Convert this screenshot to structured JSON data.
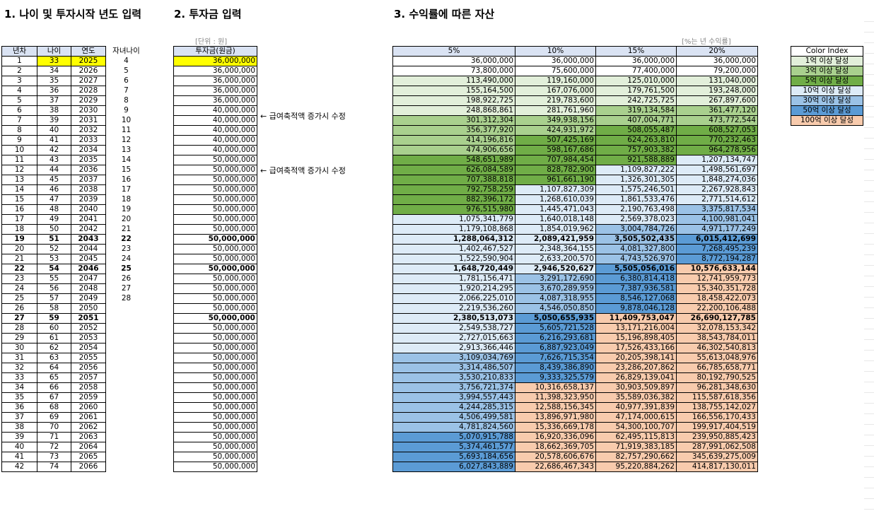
{
  "sections": {
    "s1": "1. 나이 및 투자시작 년도 입력",
    "s2": "2. 투자금 입력",
    "s3": "3. 수익률에 따른 자산"
  },
  "units": {
    "won": "[단위 : 원]",
    "rate": "[%는 년 수익률]"
  },
  "left_headers": [
    "년차",
    "나이",
    "연도",
    "자녀나이"
  ],
  "invest_header": "투자금(원금)",
  "rates": [
    "5%",
    "10%",
    "15%",
    "20%"
  ],
  "notes": [
    "← 급여축적액 증가시 수정",
    "← 급여축적액 증가시 수정"
  ],
  "color_index": {
    "title": "Color Index",
    "items": [
      {
        "label": "1억 이상 달성",
        "color": "#e2efda"
      },
      {
        "label": "3억 이상 달성",
        "color": "#a9d08e"
      },
      {
        "label": "5억 이상 달성",
        "color": "#70ad47"
      },
      {
        "label": "10억 이상 달성",
        "color": "#ddebf7"
      },
      {
        "label": "30억 이상 달성",
        "color": "#9bc2e6"
      },
      {
        "label": "50억 이상 달성",
        "color": "#5b9bd5"
      },
      {
        "label": "100억 이상 달성",
        "color": "#f8cbad"
      }
    ]
  },
  "rows": [
    {
      "y": "1",
      "age": "33",
      "year": "2025",
      "child": "4",
      "inv": "36,000,000",
      "v": [
        "36,000,000",
        "36,000,000",
        "36,000,000",
        "36,000,000"
      ]
    },
    {
      "y": "2",
      "age": "34",
      "year": "2026",
      "child": "5",
      "inv": "36,000,000",
      "v": [
        "73,800,000",
        "75,600,000",
        "77,400,000",
        "79,200,000"
      ]
    },
    {
      "y": "3",
      "age": "35",
      "year": "2027",
      "child": "6",
      "inv": "36,000,000",
      "v": [
        "113,490,000",
        "119,160,000",
        "125,010,000",
        "131,040,000"
      ]
    },
    {
      "y": "4",
      "age": "36",
      "year": "2028",
      "child": "7",
      "inv": "36,000,000",
      "v": [
        "155,164,500",
        "167,076,000",
        "179,761,500",
        "193,248,000"
      ]
    },
    {
      "y": "5",
      "age": "37",
      "year": "2029",
      "child": "8",
      "inv": "36,000,000",
      "v": [
        "198,922,725",
        "219,783,600",
        "242,725,725",
        "267,897,600"
      ]
    },
    {
      "y": "6",
      "age": "38",
      "year": "2030",
      "child": "9",
      "inv": "40,000,000",
      "v": [
        "248,868,861",
        "281,761,960",
        "319,134,584",
        "361,477,120"
      ]
    },
    {
      "y": "7",
      "age": "39",
      "year": "2031",
      "child": "10",
      "inv": "40,000,000",
      "v": [
        "301,312,304",
        "349,938,156",
        "407,004,771",
        "473,772,544"
      ]
    },
    {
      "y": "8",
      "age": "40",
      "year": "2032",
      "child": "11",
      "inv": "40,000,000",
      "v": [
        "356,377,920",
        "424,931,972",
        "508,055,487",
        "608,527,053"
      ]
    },
    {
      "y": "9",
      "age": "41",
      "year": "2033",
      "child": "12",
      "inv": "40,000,000",
      "v": [
        "414,196,816",
        "507,425,169",
        "624,263,810",
        "770,232,463"
      ]
    },
    {
      "y": "10",
      "age": "42",
      "year": "2034",
      "child": "13",
      "inv": "40,000,000",
      "v": [
        "474,906,656",
        "598,167,686",
        "757,903,382",
        "964,278,956"
      ]
    },
    {
      "y": "11",
      "age": "43",
      "year": "2035",
      "child": "14",
      "inv": "50,000,000",
      "v": [
        "548,651,989",
        "707,984,454",
        "921,588,889",
        "1,207,134,747"
      ]
    },
    {
      "y": "12",
      "age": "44",
      "year": "2036",
      "child": "15",
      "inv": "50,000,000",
      "v": [
        "626,084,589",
        "828,782,900",
        "1,109,827,222",
        "1,498,561,697"
      ]
    },
    {
      "y": "13",
      "age": "45",
      "year": "2037",
      "child": "16",
      "inv": "50,000,000",
      "v": [
        "707,388,818",
        "961,661,190",
        "1,326,301,305",
        "1,848,274,036"
      ]
    },
    {
      "y": "14",
      "age": "46",
      "year": "2038",
      "child": "17",
      "inv": "50,000,000",
      "v": [
        "792,758,259",
        "1,107,827,309",
        "1,575,246,501",
        "2,267,928,843"
      ]
    },
    {
      "y": "15",
      "age": "47",
      "year": "2039",
      "child": "18",
      "inv": "50,000,000",
      "v": [
        "882,396,172",
        "1,268,610,039",
        "1,861,533,476",
        "2,771,514,612"
      ]
    },
    {
      "y": "16",
      "age": "48",
      "year": "2040",
      "child": "19",
      "inv": "50,000,000",
      "v": [
        "976,515,980",
        "1,445,471,043",
        "2,190,763,498",
        "3,375,817,534"
      ]
    },
    {
      "y": "17",
      "age": "49",
      "year": "2041",
      "child": "20",
      "inv": "50,000,000",
      "v": [
        "1,075,341,779",
        "1,640,018,148",
        "2,569,378,023",
        "4,100,981,041"
      ]
    },
    {
      "y": "18",
      "age": "50",
      "year": "2042",
      "child": "21",
      "inv": "50,000,000",
      "v": [
        "1,179,108,868",
        "1,854,019,962",
        "3,004,784,726",
        "4,971,177,249"
      ]
    },
    {
      "y": "19",
      "age": "51",
      "year": "2043",
      "child": "22",
      "inv": "50,000,000",
      "v": [
        "1,288,064,312",
        "2,089,421,959",
        "3,505,502,435",
        "6,015,412,699"
      ],
      "bold": true
    },
    {
      "y": "20",
      "age": "52",
      "year": "2044",
      "child": "23",
      "inv": "50,000,000",
      "v": [
        "1,402,467,527",
        "2,348,364,155",
        "4,081,327,800",
        "7,268,495,239"
      ]
    },
    {
      "y": "21",
      "age": "53",
      "year": "2045",
      "child": "24",
      "inv": "50,000,000",
      "v": [
        "1,522,590,904",
        "2,633,200,570",
        "4,743,526,970",
        "8,772,194,287"
      ]
    },
    {
      "y": "22",
      "age": "54",
      "year": "2046",
      "child": "25",
      "inv": "50,000,000",
      "v": [
        "1,648,720,449",
        "2,946,520,627",
        "5,505,056,016",
        "10,576,633,144"
      ],
      "bold": true
    },
    {
      "y": "23",
      "age": "55",
      "year": "2047",
      "child": "26",
      "inv": "50,000,000",
      "v": [
        "1,781,156,471",
        "3,291,172,690",
        "6,380,814,418",
        "12,741,959,773"
      ]
    },
    {
      "y": "24",
      "age": "56",
      "year": "2048",
      "child": "27",
      "inv": "50,000,000",
      "v": [
        "1,920,214,295",
        "3,670,289,959",
        "7,387,936,581",
        "15,340,351,728"
      ]
    },
    {
      "y": "25",
      "age": "57",
      "year": "2049",
      "child": "28",
      "inv": "50,000,000",
      "v": [
        "2,066,225,010",
        "4,087,318,955",
        "8,546,127,068",
        "18,458,422,073"
      ]
    },
    {
      "y": "26",
      "age": "58",
      "year": "2050",
      "child": "",
      "inv": "50,000,000",
      "v": [
        "2,219,536,260",
        "4,546,050,850",
        "9,878,046,128",
        "22,200,106,488"
      ]
    },
    {
      "y": "27",
      "age": "59",
      "year": "2051",
      "child": "",
      "inv": "50,000,000",
      "v": [
        "2,380,513,073",
        "5,050,655,935",
        "11,409,753,047",
        "26,690,127,785"
      ],
      "bold": true
    },
    {
      "y": "28",
      "age": "60",
      "year": "2052",
      "child": "",
      "inv": "50,000,000",
      "v": [
        "2,549,538,727",
        "5,605,721,528",
        "13,171,216,004",
        "32,078,153,342"
      ]
    },
    {
      "y": "29",
      "age": "61",
      "year": "2053",
      "child": "",
      "inv": "50,000,000",
      "v": [
        "2,727,015,663",
        "6,216,293,681",
        "15,196,898,405",
        "38,543,784,011"
      ]
    },
    {
      "y": "30",
      "age": "62",
      "year": "2054",
      "child": "",
      "inv": "50,000,000",
      "v": [
        "2,913,366,446",
        "6,887,923,049",
        "17,526,433,166",
        "46,302,540,813"
      ]
    },
    {
      "y": "31",
      "age": "63",
      "year": "2055",
      "child": "",
      "inv": "50,000,000",
      "v": [
        "3,109,034,769",
        "7,626,715,354",
        "20,205,398,141",
        "55,613,048,976"
      ]
    },
    {
      "y": "32",
      "age": "64",
      "year": "2056",
      "child": "",
      "inv": "50,000,000",
      "v": [
        "3,314,486,507",
        "8,439,386,890",
        "23,286,207,862",
        "66,785,658,771"
      ]
    },
    {
      "y": "33",
      "age": "65",
      "year": "2057",
      "child": "",
      "inv": "50,000,000",
      "v": [
        "3,530,210,833",
        "9,333,325,579",
        "26,829,139,041",
        "80,192,790,525"
      ]
    },
    {
      "y": "34",
      "age": "66",
      "year": "2058",
      "child": "",
      "inv": "50,000,000",
      "v": [
        "3,756,721,374",
        "10,316,658,137",
        "30,903,509,897",
        "96,281,348,630"
      ]
    },
    {
      "y": "35",
      "age": "67",
      "year": "2059",
      "child": "",
      "inv": "50,000,000",
      "v": [
        "3,994,557,443",
        "11,398,323,950",
        "35,589,036,382",
        "115,587,618,356"
      ]
    },
    {
      "y": "36",
      "age": "68",
      "year": "2060",
      "child": "",
      "inv": "50,000,000",
      "v": [
        "4,244,285,315",
        "12,588,156,345",
        "40,977,391,839",
        "138,755,142,027"
      ]
    },
    {
      "y": "37",
      "age": "69",
      "year": "2061",
      "child": "",
      "inv": "50,000,000",
      "v": [
        "4,506,499,581",
        "13,896,971,980",
        "47,174,000,615",
        "166,556,170,433"
      ]
    },
    {
      "y": "38",
      "age": "70",
      "year": "2062",
      "child": "",
      "inv": "50,000,000",
      "v": [
        "4,781,824,560",
        "15,336,669,178",
        "54,300,100,707",
        "199,917,404,519"
      ]
    },
    {
      "y": "39",
      "age": "71",
      "year": "2063",
      "child": "",
      "inv": "50,000,000",
      "v": [
        "5,070,915,788",
        "16,920,336,096",
        "62,495,115,813",
        "239,950,885,423"
      ]
    },
    {
      "y": "40",
      "age": "72",
      "year": "2064",
      "child": "",
      "inv": "50,000,000",
      "v": [
        "5,374,461,577",
        "18,662,369,705",
        "71,919,383,185",
        "287,991,062,508"
      ]
    },
    {
      "y": "41",
      "age": "73",
      "year": "2065",
      "child": "",
      "inv": "50,000,000",
      "v": [
        "5,693,184,656",
        "20,578,606,676",
        "82,757,290,662",
        "345,639,275,009"
      ]
    },
    {
      "y": "42",
      "age": "74",
      "year": "2066",
      "child": "",
      "inv": "50,000,000",
      "v": [
        "6,027,843,889",
        "22,686,467,343",
        "95,220,884,262",
        "414,817,130,011"
      ]
    }
  ]
}
